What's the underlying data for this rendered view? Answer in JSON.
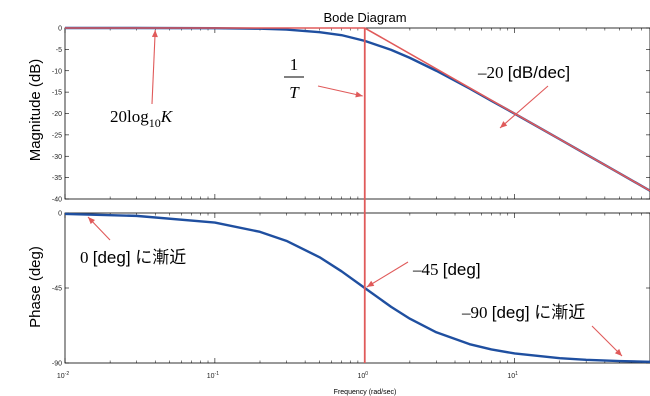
{
  "chart_data": {
    "type": "line",
    "title": "Bode Diagram",
    "xlabel": "Frequency (rad/sec)",
    "x_scale": "log",
    "xlim": [
      0.01,
      80
    ],
    "x_ticks": [
      {
        "value": 0.01,
        "base": "10",
        "exp": "-2"
      },
      {
        "value": 0.1,
        "base": "10",
        "exp": "-1"
      },
      {
        "value": 1,
        "base": "10",
        "exp": "0"
      },
      {
        "value": 10,
        "base": "10",
        "exp": "1"
      }
    ],
    "grid": false,
    "colors": {
      "response": "#1f4fa0",
      "asymptote": "#e05a5a",
      "arrow": "#e05a5a"
    },
    "panels": [
      {
        "id": "magnitude",
        "ylabel": "Magnitude (dB)",
        "ylim": [
          -40,
          0
        ],
        "y_ticks": [
          "0",
          "-5",
          "-10",
          "-15",
          "-20",
          "-25",
          "-30",
          "-35",
          "-40"
        ],
        "series": [
          {
            "style": "curve",
            "x": [
              0.01,
              0.03,
              0.1,
              0.2,
              0.3,
              0.5,
              0.7,
              1,
              1.5,
              2,
              3,
              5,
              7,
              10,
              20,
              30,
              50,
              80
            ],
            "y": [
              0,
              0,
              -0.04,
              -0.17,
              -0.37,
              -0.97,
              -1.67,
              -3.01,
              -5.12,
              -6.99,
              -10,
              -14.15,
              -17.03,
              -20.04,
              -26.02,
              -29.54,
              -33.98,
              -38.06
            ]
          },
          {
            "style": "asymptote",
            "x": [
              0.01,
              1,
              1,
              80
            ],
            "y": [
              0,
              0,
              0,
              -38.06
            ]
          }
        ],
        "annotations": [
          {
            "kind": "math",
            "base": "20log",
            "sub": "10",
            "var": "K",
            "points_to": {
              "x": 0.04,
              "y": 0
            }
          },
          {
            "kind": "frac",
            "num": "1",
            "den": "T",
            "points_to": {
              "x": 1,
              "y": -11
            }
          },
          {
            "kind": "text",
            "prefix": "–20 ",
            "text": "[dB/dec]",
            "points_to": {
              "x": 10,
              "y": -20
            }
          }
        ]
      },
      {
        "id": "phase",
        "ylabel": "Phase (deg)",
        "ylim": [
          -90,
          0
        ],
        "y_ticks": [
          "0",
          "-45",
          "-90"
        ],
        "series": [
          {
            "style": "curve",
            "x": [
              0.01,
              0.03,
              0.1,
              0.2,
              0.3,
              0.5,
              0.7,
              1,
              1.5,
              2,
              3,
              5,
              7,
              10,
              20,
              30,
              50,
              80
            ],
            "y": [
              -0.57,
              -1.72,
              -5.71,
              -11.31,
              -16.7,
              -26.57,
              -34.99,
              -45,
              -56.31,
              -63.43,
              -71.57,
              -78.69,
              -81.87,
              -84.29,
              -87.14,
              -88.09,
              -88.85,
              -89.28
            ]
          }
        ],
        "annotations": [
          {
            "kind": "text",
            "prefix": "0 ",
            "text": "[deg] に漸近",
            "points_to": {
              "x": 0.012,
              "y": 0
            }
          },
          {
            "kind": "text",
            "prefix": "–45 ",
            "text": "[deg]",
            "points_to": {
              "x": 1,
              "y": -45
            }
          },
          {
            "kind": "text",
            "prefix": "–90 ",
            "text": "[deg] に漸近",
            "points_to": {
              "x": 60,
              "y": -88
            }
          }
        ]
      }
    ]
  }
}
